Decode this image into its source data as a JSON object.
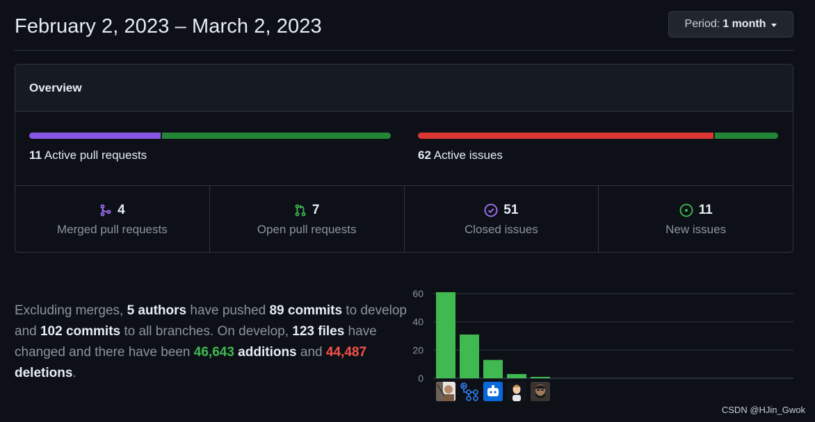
{
  "header": {
    "title": "February 2, 2023 – March 2, 2023",
    "period_prefix": "Period:",
    "period_value": "1 month"
  },
  "overview": {
    "title": "Overview",
    "pull_requests": {
      "count": "11",
      "label": "Active pull requests",
      "merged_fraction": 0.364,
      "colors": {
        "merged": "#8957e5",
        "open": "#238636"
      }
    },
    "issues": {
      "count": "62",
      "label": "Active issues",
      "closed_fraction": 0.823,
      "colors": {
        "closed": "#da3633",
        "new": "#238636"
      }
    },
    "stats": [
      {
        "value": "4",
        "label": "Merged pull requests",
        "icon": "git-merge-icon",
        "color": "#a371f7"
      },
      {
        "value": "7",
        "label": "Open pull requests",
        "icon": "git-pull-request-icon",
        "color": "#3fb950"
      },
      {
        "value": "51",
        "label": "Closed issues",
        "icon": "issue-closed-icon",
        "color": "#a371f7"
      },
      {
        "value": "11",
        "label": "New issues",
        "icon": "issue-opened-icon",
        "color": "#3fb950"
      }
    ]
  },
  "summary": {
    "t1": "Excluding merges, ",
    "authors": "5 authors",
    "t2": " have pushed ",
    "commits_branch": "89 commits",
    "t3": " to develop and ",
    "commits_all": "102 commits",
    "t4": " to all branches. On develop, ",
    "files": "123 files",
    "t5": " have changed and there have been ",
    "additions_num": "46,643",
    "additions_word": " additions",
    "t6": " and ",
    "deletions_num": "44,487",
    "deletions_word": " deletions",
    "t7": "."
  },
  "chart_data": {
    "type": "bar",
    "categories": [
      "author-1",
      "author-2",
      "author-3",
      "author-4",
      "author-5"
    ],
    "values": [
      61,
      31,
      13,
      3,
      1
    ],
    "ylim": [
      0,
      60
    ],
    "yticks": [
      0,
      20,
      40,
      60
    ],
    "grid": true,
    "bar_color": "#3fb950"
  },
  "watermark": "CSDN @HJin_Gwok"
}
